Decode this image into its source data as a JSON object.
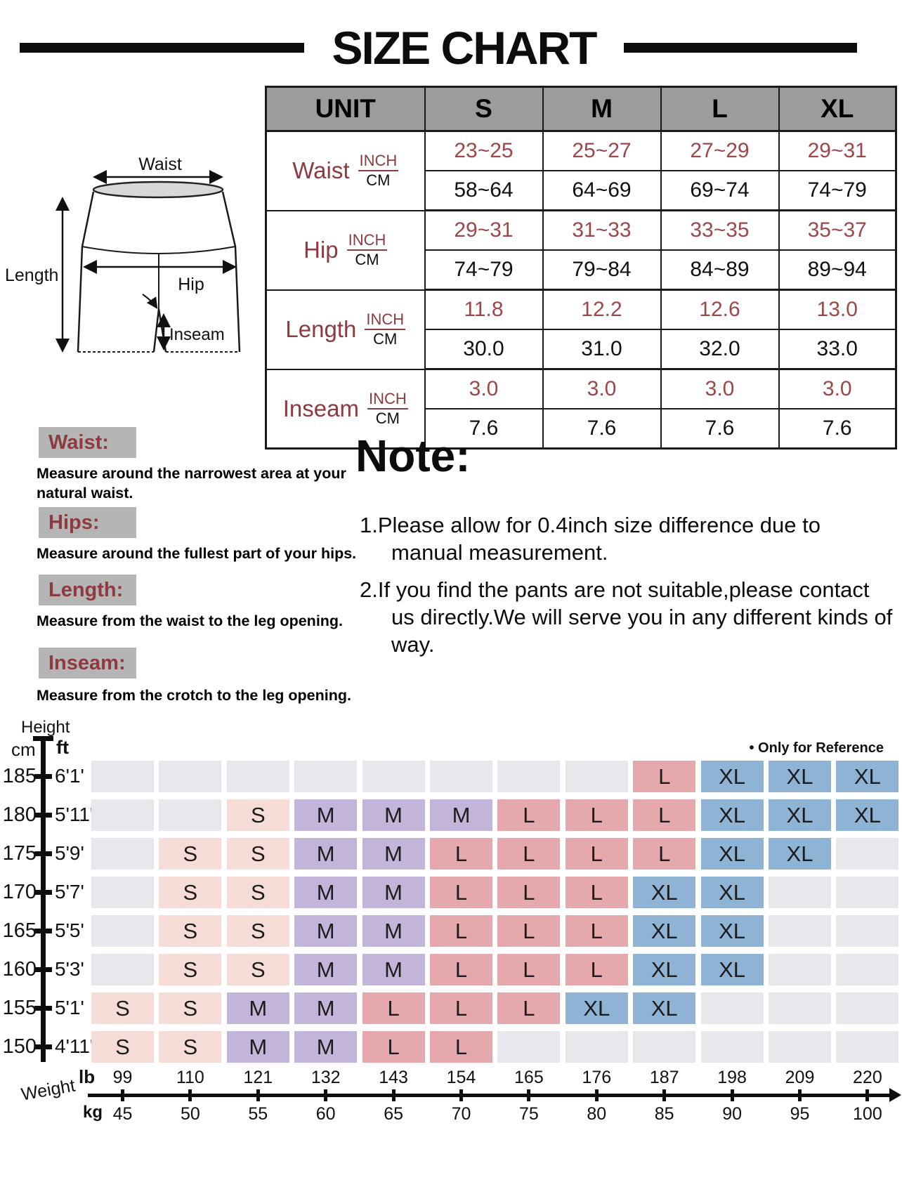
{
  "title": "SIZE CHART",
  "colors": {
    "accent_maroon": "#8d3a40",
    "value_maroon": "#9d464b",
    "table_header_gray": "#9c9c9c",
    "label_box_gray": "#b5b5b5"
  },
  "size_table": {
    "unit_header": "UNIT",
    "size_headers": [
      "S",
      "M",
      "L",
      "XL"
    ],
    "unit_labels": {
      "inch": "INCH",
      "cm": "CM"
    },
    "rows": [
      {
        "name": "Waist",
        "inch": [
          "23~25",
          "25~27",
          "27~29",
          "29~31"
        ],
        "cm": [
          "58~64",
          "64~69",
          "69~74",
          "74~79"
        ]
      },
      {
        "name": "Hip",
        "inch": [
          "29~31",
          "31~33",
          "33~35",
          "35~37"
        ],
        "cm": [
          "74~79",
          "79~84",
          "84~89",
          "89~94"
        ]
      },
      {
        "name": "Length",
        "inch": [
          "11.8",
          "12.2",
          "12.6",
          "13.0"
        ],
        "cm": [
          "30.0",
          "31.0",
          "32.0",
          "33.0"
        ]
      },
      {
        "name": "Inseam",
        "inch": [
          "3.0",
          "3.0",
          "3.0",
          "3.0"
        ],
        "cm": [
          "7.6",
          "7.6",
          "7.6",
          "7.6"
        ]
      }
    ]
  },
  "diagram": {
    "labels": {
      "waist": "Waist",
      "hip": "Hip",
      "length": "Length",
      "inseam": "Inseam"
    }
  },
  "instructions": [
    {
      "label": "Waist:",
      "text": "Measure around the narrowest area at your natural waist."
    },
    {
      "label": "Hips:",
      "text": "Measure around the fullest part of your hips."
    },
    {
      "label": "Length:",
      "text": "Measure from the waist to the leg opening."
    },
    {
      "label": "Inseam:",
      "text": "Measure from the crotch to the leg opening."
    }
  ],
  "note": {
    "heading": "Note:",
    "items": [
      "1.Please allow for 0.4inch size difference due to manual measurement.",
      "2.If you find the pants are not suitable,please contact us directly.We will serve you in any different kinds of way."
    ]
  },
  "reference_chart": {
    "reference_note": "• Only for Reference",
    "height_label": "Height",
    "weight_label": "Weight",
    "cm_label": "cm",
    "ft_label": "ft",
    "lb_label": "lb",
    "kg_label": "kg",
    "colors": {
      "S": "#f6dcd7",
      "M": "#c3b5da",
      "L": "#e5a8ac",
      "XL": "#8fb3d4",
      "empty": "#e8e7ec"
    },
    "rows": [
      {
        "cm": "185",
        "ft": "6'1'",
        "cells": [
          "",
          "",
          "",
          "",
          "",
          "",
          "",
          "",
          "L",
          "XL",
          "XL",
          "XL"
        ]
      },
      {
        "cm": "180",
        "ft": "5'11'",
        "cells": [
          "",
          "",
          "S",
          "M",
          "M",
          "M",
          "L",
          "L",
          "L",
          "XL",
          "XL",
          "XL"
        ]
      },
      {
        "cm": "175",
        "ft": "5'9'",
        "cells": [
          "",
          "S",
          "S",
          "M",
          "M",
          "L",
          "L",
          "L",
          "L",
          "XL",
          "XL",
          ""
        ]
      },
      {
        "cm": "170",
        "ft": "5'7'",
        "cells": [
          "",
          "S",
          "S",
          "M",
          "M",
          "L",
          "L",
          "L",
          "XL",
          "XL",
          "",
          ""
        ]
      },
      {
        "cm": "165",
        "ft": "5'5'",
        "cells": [
          "",
          "S",
          "S",
          "M",
          "M",
          "L",
          "L",
          "L",
          "XL",
          "XL",
          "",
          ""
        ]
      },
      {
        "cm": "160",
        "ft": "5'3'",
        "cells": [
          "",
          "S",
          "S",
          "M",
          "M",
          "L",
          "L",
          "L",
          "XL",
          "XL",
          "",
          ""
        ]
      },
      {
        "cm": "155",
        "ft": "5'1'",
        "cells": [
          "S",
          "S",
          "M",
          "M",
          "L",
          "L",
          "L",
          "XL",
          "XL",
          "",
          "",
          ""
        ]
      },
      {
        "cm": "150",
        "ft": "4'11'",
        "cells": [
          "S",
          "S",
          "M",
          "M",
          "L",
          "L",
          "",
          "",
          "",
          "",
          "",
          ""
        ]
      }
    ],
    "weights_lb": [
      "99",
      "110",
      "121",
      "132",
      "143",
      "154",
      "165",
      "176",
      "187",
      "198",
      "209",
      "220"
    ],
    "weights_kg": [
      "45",
      "50",
      "55",
      "60",
      "65",
      "70",
      "75",
      "80",
      "85",
      "90",
      "95",
      "100"
    ]
  },
  "chart_data": [
    {
      "type": "table",
      "title": "SIZE CHART",
      "columns": [
        "UNIT",
        "S",
        "M",
        "L",
        "XL"
      ],
      "rows": [
        {
          "label": "Waist",
          "unit": "INCH",
          "values": [
            "23~25",
            "25~27",
            "27~29",
            "29~31"
          ]
        },
        {
          "label": "Waist",
          "unit": "CM",
          "values": [
            "58~64",
            "64~69",
            "69~74",
            "74~79"
          ]
        },
        {
          "label": "Hip",
          "unit": "INCH",
          "values": [
            "29~31",
            "31~33",
            "33~35",
            "35~37"
          ]
        },
        {
          "label": "Hip",
          "unit": "CM",
          "values": [
            "74~79",
            "79~84",
            "84~89",
            "89~94"
          ]
        },
        {
          "label": "Length",
          "unit": "INCH",
          "values": [
            11.8,
            12.2,
            12.6,
            13.0
          ]
        },
        {
          "label": "Length",
          "unit": "CM",
          "values": [
            30.0,
            31.0,
            32.0,
            33.0
          ]
        },
        {
          "label": "Inseam",
          "unit": "INCH",
          "values": [
            3.0,
            3.0,
            3.0,
            3.0
          ]
        },
        {
          "label": "Inseam",
          "unit": "CM",
          "values": [
            7.6,
            7.6,
            7.6,
            7.6
          ]
        }
      ]
    },
    {
      "type": "heatmap",
      "title": "Height / Weight size reference (Only for Reference)",
      "xlabel": "Weight",
      "ylabel": "Height",
      "x_lb": [
        99,
        110,
        121,
        132,
        143,
        154,
        165,
        176,
        187,
        198,
        209,
        220
      ],
      "x_kg": [
        45,
        50,
        55,
        60,
        65,
        70,
        75,
        80,
        85,
        90,
        95,
        100
      ],
      "y_cm": [
        185,
        180,
        175,
        170,
        165,
        160,
        155,
        150
      ],
      "y_ft": [
        "6'1'",
        "5'11'",
        "5'9'",
        "5'7'",
        "5'5'",
        "5'3'",
        "5'1'",
        "4'11'"
      ],
      "cells": [
        [
          "",
          "",
          "",
          "",
          "",
          "",
          "",
          "",
          "L",
          "XL",
          "XL",
          "XL"
        ],
        [
          "",
          "",
          "S",
          "M",
          "M",
          "M",
          "L",
          "L",
          "L",
          "XL",
          "XL",
          "XL"
        ],
        [
          "",
          "S",
          "S",
          "M",
          "M",
          "L",
          "L",
          "L",
          "L",
          "XL",
          "XL",
          ""
        ],
        [
          "",
          "S",
          "S",
          "M",
          "M",
          "L",
          "L",
          "L",
          "XL",
          "XL",
          "",
          ""
        ],
        [
          "",
          "S",
          "S",
          "M",
          "M",
          "L",
          "L",
          "L",
          "XL",
          "XL",
          "",
          ""
        ],
        [
          "",
          "S",
          "S",
          "M",
          "M",
          "L",
          "L",
          "L",
          "XL",
          "XL",
          "",
          ""
        ],
        [
          "S",
          "S",
          "M",
          "M",
          "L",
          "L",
          "L",
          "XL",
          "XL",
          "",
          "",
          ""
        ],
        [
          "S",
          "S",
          "M",
          "M",
          "L",
          "L",
          "",
          "",
          "",
          "",
          "",
          ""
        ]
      ]
    }
  ]
}
